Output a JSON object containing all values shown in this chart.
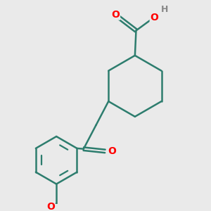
{
  "background_color": "#eaeaea",
  "bond_color": "#2d7d6e",
  "atom_colors": {
    "O": "#ff0000",
    "H": "#888888"
  },
  "line_width": 1.8,
  "figsize": [
    3.0,
    3.0
  ],
  "dpi": 100,
  "xlim": [
    0.0,
    9.0
  ],
  "ylim": [
    0.0,
    9.0
  ]
}
